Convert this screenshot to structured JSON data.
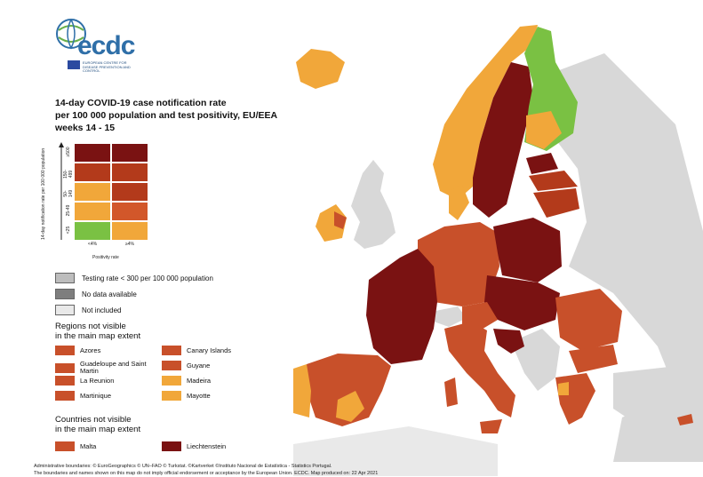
{
  "logo": {
    "wordmark": "ecdc",
    "subtitle": "EUROPEAN CENTRE FOR DISEASE PREVENTION AND CONTROL",
    "globe_icon": "globe-icon",
    "eu_flag_icon": "eu-flag-icon"
  },
  "title": {
    "line1": "14-day COVID-19 case notification rate",
    "line2": "per 100 000 population and test positivity, EU/EEA",
    "line3": "weeks 14 - 15"
  },
  "matrix": {
    "y_axis_label": "14-day notification rate per 100 000 population",
    "y_ticks": [
      "≥500",
      "150-499",
      "50-149",
      "25-49",
      "<25"
    ],
    "x_axis_label": "Positivity rate",
    "x_ticks": [
      "<4%",
      "≥4%"
    ],
    "colors": [
      [
        "#7a1212",
        "#7a1212"
      ],
      [
        "#b33a1b",
        "#b33a1b"
      ],
      [
        "#f1a73a",
        "#b33a1b"
      ],
      [
        "#f1a73a",
        "#d2572a"
      ],
      [
        "#7ac143",
        "#f1a73a"
      ]
    ]
  },
  "legend": {
    "items": [
      {
        "label": "Testing rate < 300 per 100 000 population",
        "color": "#bdbdbd"
      },
      {
        "label": "No data available",
        "color": "#7e7e7e"
      },
      {
        "label": "Not included",
        "color": "#e9e9e9"
      }
    ]
  },
  "regions_section": {
    "heading_line1": "Regions not visible",
    "heading_line2": "in the main map extent",
    "items": [
      {
        "label": "Azores",
        "color": "#c8502a"
      },
      {
        "label": "Canary Islands",
        "color": "#c8502a"
      },
      {
        "label": "Guadeloupe and Saint Martin",
        "color": "#c8502a"
      },
      {
        "label": "Guyane",
        "color": "#c8502a"
      },
      {
        "label": "La Reunion",
        "color": "#c8502a"
      },
      {
        "label": "Madeira",
        "color": "#f1a73a"
      },
      {
        "label": "Martinique",
        "color": "#c8502a"
      },
      {
        "label": "Mayotte",
        "color": "#f1a73a"
      }
    ]
  },
  "countries_section": {
    "heading_line1": "Countries not visible",
    "heading_line2": "in the main map extent",
    "items": [
      {
        "label": "Malta",
        "color": "#c8502a"
      },
      {
        "label": "Liechtenstein",
        "color": "#7a1212"
      }
    ]
  },
  "footer": {
    "line1": "Administrative boundaries: © EuroGeographics © UN–FAO © Turkstat. ©Kartverket ©Instituto Nacional de Estatística - Statistics Portugal.",
    "line2": "The boundaries and names shown on this map do not imply official endorsement or acceptance by the European Union. ECDC. Map produced on: 22 Apr 2021"
  },
  "map_colors": {
    "dark_red": "#7a1212",
    "red": "#b33a1b",
    "orange_red": "#c8502a",
    "orange": "#f1a73a",
    "green": "#7ac143",
    "grey": "#d8d8d8",
    "light_grey": "#e9e9e9",
    "water": "#ffffff"
  }
}
